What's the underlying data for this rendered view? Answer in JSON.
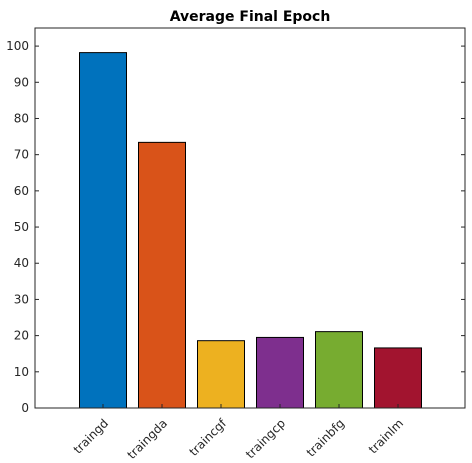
{
  "chart_data": {
    "type": "bar",
    "title": "Average Final Epoch",
    "xlabel": "",
    "ylabel": "",
    "categories": [
      "traingd",
      "traingda",
      "traincgf",
      "traingcp",
      "trainbfg",
      "trainlm"
    ],
    "values": [
      98.2,
      73.4,
      18.6,
      19.5,
      21.1,
      16.6
    ],
    "colors": [
      "#0072BD",
      "#D95319",
      "#EDB120",
      "#7E2F8E",
      "#77AC30",
      "#A2142F"
    ],
    "ylim": [
      0,
      105
    ],
    "yticks": [
      0,
      10,
      20,
      30,
      40,
      50,
      60,
      70,
      80,
      90,
      100
    ],
    "xtick_rotation_deg": -45,
    "grid": false,
    "legend": "none"
  }
}
